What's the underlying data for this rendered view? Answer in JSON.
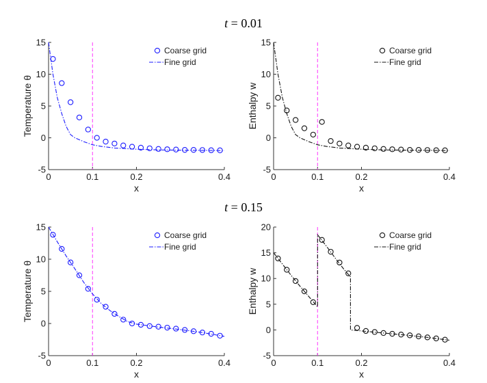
{
  "titles": [
    "t = 0.01",
    "t = 0.15"
  ],
  "colors": {
    "blue": "#1a1aff",
    "black": "#111111",
    "magenta": "#ff33ff"
  },
  "chart_data": [
    {
      "type": "line",
      "panel": "top-left",
      "group_title": "t = 0.01",
      "xlabel": "x",
      "ylabel": "Temperature θ",
      "xlim": [
        0,
        0.4
      ],
      "ylim": [
        -5,
        15
      ],
      "xticks": [
        0,
        0.1,
        0.2,
        0.4
      ],
      "xtick_labels": [
        "0",
        "0.1",
        "0.2",
        "0.4"
      ],
      "yticks": [
        -5,
        0,
        5,
        10,
        15
      ],
      "ytick_labels": [
        "-5",
        "0",
        "5",
        "10",
        "15"
      ],
      "vline": 0.1,
      "color": "blue",
      "legend": [
        "Coarse grid",
        "Fine grid"
      ],
      "series": [
        {
          "name": "Coarse grid",
          "style": "circles",
          "x": [
            0.01,
            0.03,
            0.05,
            0.07,
            0.09,
            0.11,
            0.13,
            0.15,
            0.17,
            0.19,
            0.21,
            0.23,
            0.25,
            0.27,
            0.29,
            0.31,
            0.33,
            0.35,
            0.37,
            0.39
          ],
          "y": [
            12.4,
            8.6,
            5.6,
            3.2,
            1.3,
            0.0,
            -0.6,
            -0.9,
            -1.2,
            -1.4,
            -1.55,
            -1.65,
            -1.75,
            -1.8,
            -1.85,
            -1.9,
            -1.9,
            -1.92,
            -1.95,
            -1.97
          ]
        },
        {
          "name": "Fine grid",
          "style": "dashdot",
          "x": [
            0,
            0.01,
            0.02,
            0.03,
            0.04,
            0.05,
            0.06,
            0.08,
            0.1,
            0.12,
            0.15,
            0.2,
            0.25,
            0.3,
            0.35,
            0.4
          ],
          "y": [
            15,
            10.0,
            6.3,
            3.8,
            1.8,
            0.5,
            0.0,
            -0.6,
            -1.1,
            -1.35,
            -1.6,
            -1.8,
            -1.9,
            -1.95,
            -1.97,
            -2.0
          ]
        }
      ]
    },
    {
      "type": "line",
      "panel": "top-right",
      "group_title": "t = 0.01",
      "xlabel": "x",
      "ylabel": "Enthalpy w",
      "xlim": [
        0,
        0.4
      ],
      "ylim": [
        -5,
        15
      ],
      "xticks": [
        0,
        0.1,
        0.2,
        0.4
      ],
      "xtick_labels": [
        "0",
        "0.1",
        "0.2",
        "0.4"
      ],
      "yticks": [
        -5,
        0,
        5,
        10,
        15
      ],
      "ytick_labels": [
        "-5",
        "0",
        "5",
        "10",
        "15"
      ],
      "vline": 0.1,
      "color": "black",
      "legend": [
        "Coarse grid",
        "Fine grid"
      ],
      "series": [
        {
          "name": "Coarse grid",
          "style": "circles",
          "x": [
            0.01,
            0.03,
            0.05,
            0.07,
            0.09,
            0.11,
            0.13,
            0.15,
            0.17,
            0.19,
            0.21,
            0.23,
            0.25,
            0.27,
            0.29,
            0.31,
            0.33,
            0.35,
            0.37,
            0.39
          ],
          "y": [
            6.3,
            4.3,
            2.8,
            1.5,
            0.5,
            2.5,
            -0.5,
            -0.9,
            -1.2,
            -1.4,
            -1.55,
            -1.65,
            -1.75,
            -1.8,
            -1.85,
            -1.9,
            -1.9,
            -1.92,
            -1.95,
            -1.97
          ]
        },
        {
          "name": "Fine grid",
          "style": "dashdot",
          "x": [
            0,
            0.01,
            0.02,
            0.03,
            0.04,
            0.05,
            0.06,
            0.08,
            0.1,
            0.12,
            0.15,
            0.2,
            0.25,
            0.3,
            0.35,
            0.4
          ],
          "y": [
            15,
            10.0,
            6.3,
            3.8,
            1.8,
            0.5,
            0.0,
            -0.6,
            -1.1,
            -1.35,
            -1.6,
            -1.8,
            -1.9,
            -1.95,
            -1.97,
            -2.0
          ]
        }
      ]
    },
    {
      "type": "line",
      "panel": "bottom-left",
      "group_title": "t = 0.15",
      "xlabel": "x",
      "ylabel": "Temperature θ",
      "xlim": [
        0,
        0.4
      ],
      "ylim": [
        -5,
        15
      ],
      "xticks": [
        0,
        0.1,
        0.2,
        0.4
      ],
      "xtick_labels": [
        "0",
        "0.1",
        "0.2",
        "0.4"
      ],
      "yticks": [
        -5,
        0,
        5,
        10,
        15
      ],
      "ytick_labels": [
        "-5",
        "0",
        "5",
        "10",
        "15"
      ],
      "vline": 0.1,
      "color": "blue",
      "legend": [
        "Coarse grid",
        "Fine grid"
      ],
      "series": [
        {
          "name": "Coarse grid",
          "style": "circles",
          "x": [
            0.01,
            0.03,
            0.05,
            0.07,
            0.09,
            0.11,
            0.13,
            0.15,
            0.17,
            0.19,
            0.21,
            0.23,
            0.25,
            0.27,
            0.29,
            0.31,
            0.33,
            0.35,
            0.37,
            0.39
          ],
          "y": [
            13.8,
            11.6,
            9.5,
            7.5,
            5.4,
            3.7,
            2.6,
            1.5,
            0.6,
            0.0,
            -0.2,
            -0.4,
            -0.5,
            -0.65,
            -0.8,
            -1.0,
            -1.2,
            -1.4,
            -1.6,
            -1.9
          ]
        },
        {
          "name": "Fine grid",
          "style": "dashdot",
          "x": [
            0,
            0.02,
            0.04,
            0.06,
            0.08,
            0.1,
            0.12,
            0.14,
            0.16,
            0.18,
            0.2,
            0.25,
            0.3,
            0.35,
            0.4
          ],
          "y": [
            15,
            12.7,
            10.5,
            8.5,
            6.4,
            4.6,
            3.1,
            2.0,
            1.1,
            0.3,
            -0.1,
            -0.55,
            -0.95,
            -1.4,
            -2.0
          ]
        }
      ]
    },
    {
      "type": "line",
      "panel": "bottom-right",
      "group_title": "t = 0.15",
      "xlabel": "x",
      "ylabel": "Enthalpy w",
      "xlim": [
        0,
        0.4
      ],
      "ylim": [
        -5,
        20
      ],
      "xticks": [
        0,
        0.1,
        0.2,
        0.4
      ],
      "xtick_labels": [
        "0",
        "0.1",
        "0.2",
        "0.4"
      ],
      "yticks": [
        -5,
        0,
        5,
        10,
        15,
        20
      ],
      "ytick_labels": [
        "-5",
        "0",
        "5",
        "10",
        "15",
        "20"
      ],
      "vline": 0.1,
      "color": "black",
      "legend": [
        "Coarse grid",
        "Fine grid"
      ],
      "series": [
        {
          "name": "Coarse grid",
          "style": "circles",
          "x": [
            0.01,
            0.03,
            0.05,
            0.07,
            0.09,
            0.11,
            0.13,
            0.15,
            0.17,
            0.19,
            0.21,
            0.23,
            0.25,
            0.27,
            0.29,
            0.31,
            0.33,
            0.35,
            0.37,
            0.39
          ],
          "y": [
            13.9,
            11.7,
            9.5,
            7.5,
            5.4,
            17.5,
            15.2,
            13.1,
            11.0,
            0.4,
            -0.2,
            -0.4,
            -0.6,
            -0.75,
            -0.9,
            -1.05,
            -1.25,
            -1.45,
            -1.65,
            -1.9
          ]
        },
        {
          "name": "Fine grid",
          "style": "dashdot",
          "x": [
            0,
            0.02,
            0.04,
            0.06,
            0.08,
            0.1,
            0.1,
            0.12,
            0.14,
            0.16,
            0.175,
            0.175,
            0.2,
            0.25,
            0.3,
            0.35,
            0.4
          ],
          "y": [
            15,
            12.8,
            10.6,
            8.5,
            6.5,
            4.5,
            18.5,
            16.3,
            14.0,
            11.8,
            10.3,
            0.0,
            -0.2,
            -0.6,
            -1.0,
            -1.45,
            -2.0
          ]
        }
      ]
    }
  ]
}
